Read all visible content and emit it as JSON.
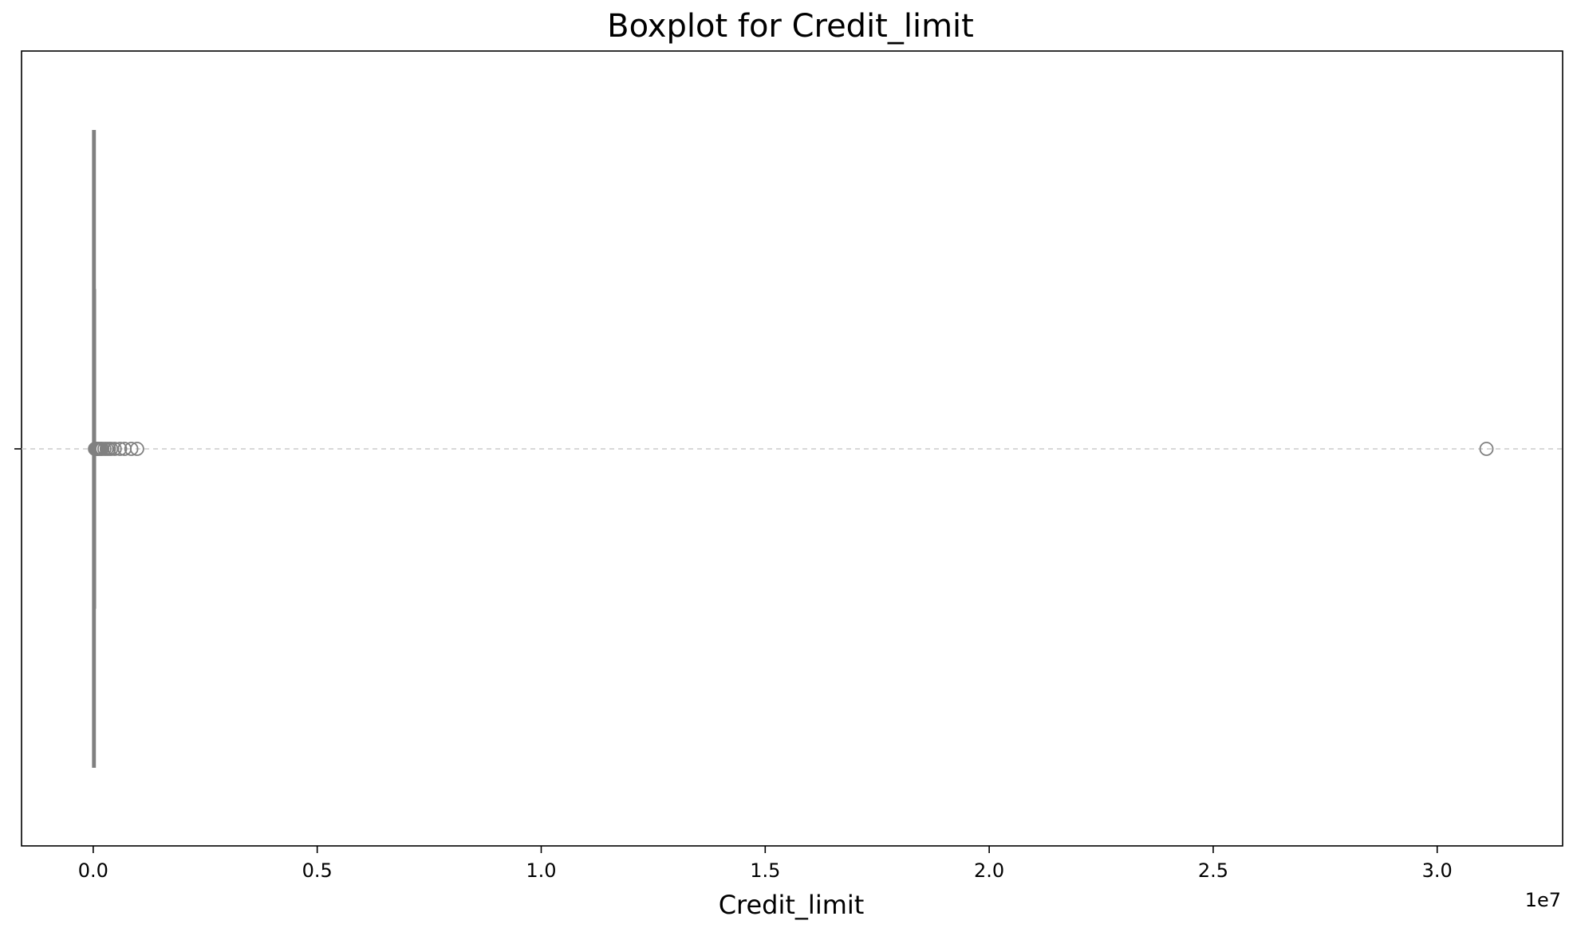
{
  "chart_data": {
    "type": "box",
    "orientation": "horizontal",
    "title": "Boxplot for Credit_limit",
    "xlabel": "Credit_limit",
    "ylabel": "",
    "x_offset_label": "1e7",
    "x_scale_factor": 10000000,
    "xlim": [
      -0.16,
      3.28
    ],
    "x_ticks": [
      0.0,
      0.5,
      1.0,
      1.5,
      2.0,
      2.5,
      3.0
    ],
    "x_tick_labels": [
      "0.0",
      "0.5",
      "1.0",
      "1.5",
      "2.0",
      "2.5",
      "3.0"
    ],
    "grid": "horizontal dashed line at box center",
    "legend": "none",
    "box": {
      "whisker_low": 0,
      "q1": 3000,
      "median": 7000,
      "q3": 15000,
      "whisker_high": 33000
    },
    "outliers": [
      40000,
      55000,
      70000,
      90000,
      110000,
      140000,
      170000,
      200000,
      250000,
      300000,
      350000,
      400000,
      480000,
      600000,
      700000,
      850000,
      980000,
      31100000
    ],
    "colors": {
      "box": "#808080",
      "outlier_edge": "#808080",
      "grid": "#cccccc",
      "frame": "#000000"
    }
  }
}
